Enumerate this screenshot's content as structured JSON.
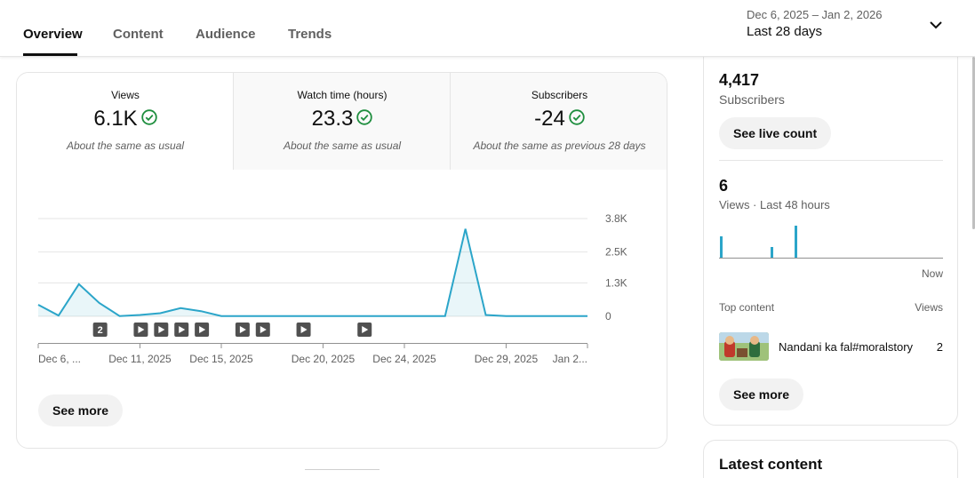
{
  "tabs": [
    {
      "label": "Overview"
    },
    {
      "label": "Content"
    },
    {
      "label": "Audience"
    },
    {
      "label": "Trends"
    }
  ],
  "date_picker": {
    "range": "Dec 6, 2025 – Jan 2, 2026",
    "label": "Last 28 days",
    "icon": "chevron-down-icon"
  },
  "metrics": [
    {
      "label": "Views",
      "value": "6.1K",
      "note": "About the same as usual",
      "icon": "check-circle-icon"
    },
    {
      "label": "Watch time (hours)",
      "value": "23.3",
      "note": "About the same as usual",
      "icon": "check-circle-icon"
    },
    {
      "label": "Subscribers",
      "value": "-24",
      "note": "About the same as previous 28 days",
      "icon": "check-circle-icon"
    }
  ],
  "chart_data": {
    "type": "area",
    "series": [
      {
        "values": [
          450,
          30,
          1250,
          520,
          10,
          50,
          120,
          320,
          200,
          10,
          10,
          10,
          10,
          10,
          10,
          10,
          10,
          10,
          10,
          10,
          10,
          3400,
          50,
          10,
          10,
          10,
          10,
          10
        ]
      }
    ],
    "x_tick_labels": [
      "Dec 6, ...",
      "Dec 11, 2025",
      "Dec 15, 2025",
      "Dec 20, 2025",
      "Dec 24, 2025",
      "Dec 29, 2025",
      "Jan 2..."
    ],
    "x_tick_indices": [
      0,
      5,
      9,
      14,
      18,
      23,
      27
    ],
    "y_ticks": [
      0,
      1300,
      2500,
      3800
    ],
    "y_tick_labels": [
      "0",
      "1.3K",
      "2.5K",
      "3.8K"
    ],
    "ylim": [
      0,
      3800
    ],
    "grid": true,
    "color": "#2ba5c9",
    "markers": [
      {
        "index": 3,
        "label": "2"
      },
      {
        "index": 5,
        "label": ""
      },
      {
        "index": 6,
        "label": ""
      },
      {
        "index": 7,
        "label": ""
      },
      {
        "index": 8,
        "label": ""
      },
      {
        "index": 10,
        "label": ""
      },
      {
        "index": 11,
        "label": ""
      },
      {
        "index": 13,
        "label": ""
      },
      {
        "index": 16,
        "label": ""
      }
    ]
  },
  "main": {
    "see_more": "See more"
  },
  "realtime": {
    "subscribers": "4,417",
    "subscribers_label": "Subscribers",
    "live_count_button": "See live count",
    "views": "6",
    "views_label": "Views · Last 48 hours",
    "bars": [
      4,
      2,
      6
    ],
    "now_label": "Now",
    "top_content_label": "Top content",
    "views_col_label": "Views",
    "top_item_title": "Nandani ka fal#moralstory",
    "top_item_views": "2",
    "see_more": "See more"
  },
  "latest": {
    "title": "Latest content"
  }
}
